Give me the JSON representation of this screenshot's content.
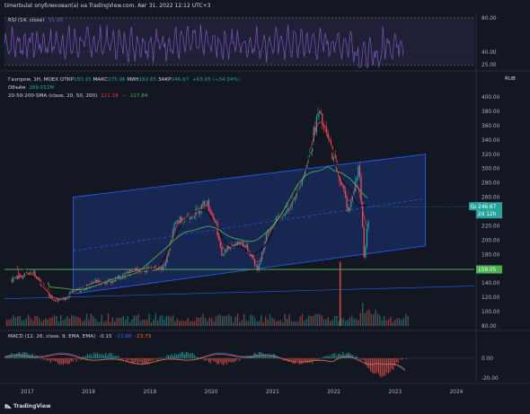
{
  "header": {
    "publisher": "timerbulat опубликовал(а) на TradingView.com, Авг 31, 2022 12:12 UTC+3"
  },
  "rsi_panel": {
    "label": "RSI (14, close)",
    "value": "51.95",
    "ticks": [
      "80.00",
      "40.00",
      "25.00"
    ]
  },
  "main_panel": {
    "legend_name": "Газпром, 1Н, MOEX",
    "ohlc": [
      {
        "k": "ОТКР",
        "v": "183.15"
      },
      {
        "k": "МАКС",
        "v": "275.96"
      },
      {
        "k": "МИН",
        "v": "182.65"
      },
      {
        "k": "ЗАКР",
        "v": "246.67"
      }
    ],
    "change": "+63.05 (+34.34%)",
    "volume_label": "Объём",
    "volume_value": "289.552M",
    "sma_label": "20-50-200-SMA (close, 20, 50, 200)",
    "sma_values": [
      "221.18",
      "—",
      "227.84"
    ],
    "currency": "RUB",
    "price_ticks": [
      "400.00",
      "380.00",
      "360.00",
      "340.00",
      "320.00",
      "300.00",
      "280.00",
      "260.00",
      "240.00",
      "220.00",
      "200.00",
      "180.00",
      "160.00",
      "140.00",
      "120.00",
      "100.00",
      "80.00"
    ],
    "ticker": "GAZP",
    "last_price": "246.67",
    "countdown": "2d 12h",
    "level_label": "159.05"
  },
  "macd_panel": {
    "label": "MACD (12, 26, close, 9, EMA, EMA)",
    "values": [
      "-0.15",
      "-23.88",
      "-23.73"
    ],
    "ticks": [
      "0.00",
      "-20.00"
    ]
  },
  "time_axis": [
    "2017",
    "2018",
    "2019",
    "2020",
    "2021",
    "2022",
    "2023",
    "2024"
  ],
  "footer": {
    "brand": "TradingView"
  },
  "colors": {
    "bg": "#131722",
    "candle_up": "#26a69a",
    "candle_down": "#ef5350",
    "sma20": "#f23645",
    "sma50": "#2962ff",
    "sma200": "#4caf50",
    "rsi": "#7e57c2",
    "channel": "#2962ff",
    "level": "#4caf50"
  },
  "chart_data": {
    "type": "candlestick",
    "x_range": [
      "2016-09",
      "2024-05"
    ],
    "y_range": [
      80,
      410
    ],
    "series": [
      {
        "name": "Газпром",
        "points": [
          [
            "2016-10",
            145
          ],
          [
            "2016-12",
            150
          ],
          [
            "2017-02",
            155
          ],
          [
            "2017-04",
            135
          ],
          [
            "2017-06",
            118
          ],
          [
            "2017-08",
            117
          ],
          [
            "2017-10",
            128
          ],
          [
            "2017-12",
            132
          ],
          [
            "2018-02",
            142
          ],
          [
            "2018-04",
            140
          ],
          [
            "2018-06",
            145
          ],
          [
            "2018-08",
            150
          ],
          [
            "2018-10",
            158
          ],
          [
            "2018-12",
            158
          ],
          [
            "2019-02",
            160
          ],
          [
            "2019-04",
            163
          ],
          [
            "2019-06",
            225
          ],
          [
            "2019-08",
            232
          ],
          [
            "2019-10",
            238
          ],
          [
            "2019-12",
            255
          ],
          [
            "2020-02",
            222
          ],
          [
            "2020-03",
            178
          ],
          [
            "2020-05",
            193
          ],
          [
            "2020-07",
            197
          ],
          [
            "2020-09",
            178
          ],
          [
            "2020-10",
            157
          ],
          [
            "2020-12",
            210
          ],
          [
            "2021-02",
            230
          ],
          [
            "2021-04",
            245
          ],
          [
            "2021-06",
            272
          ],
          [
            "2021-08",
            315
          ],
          [
            "2021-10",
            378
          ],
          [
            "2021-12",
            338
          ],
          [
            "2022-02",
            290
          ],
          [
            "2022-04",
            240
          ],
          [
            "2022-06",
            305
          ],
          [
            "2022-07",
            175
          ],
          [
            "2022-08",
            246.67
          ]
        ]
      }
    ]
  }
}
